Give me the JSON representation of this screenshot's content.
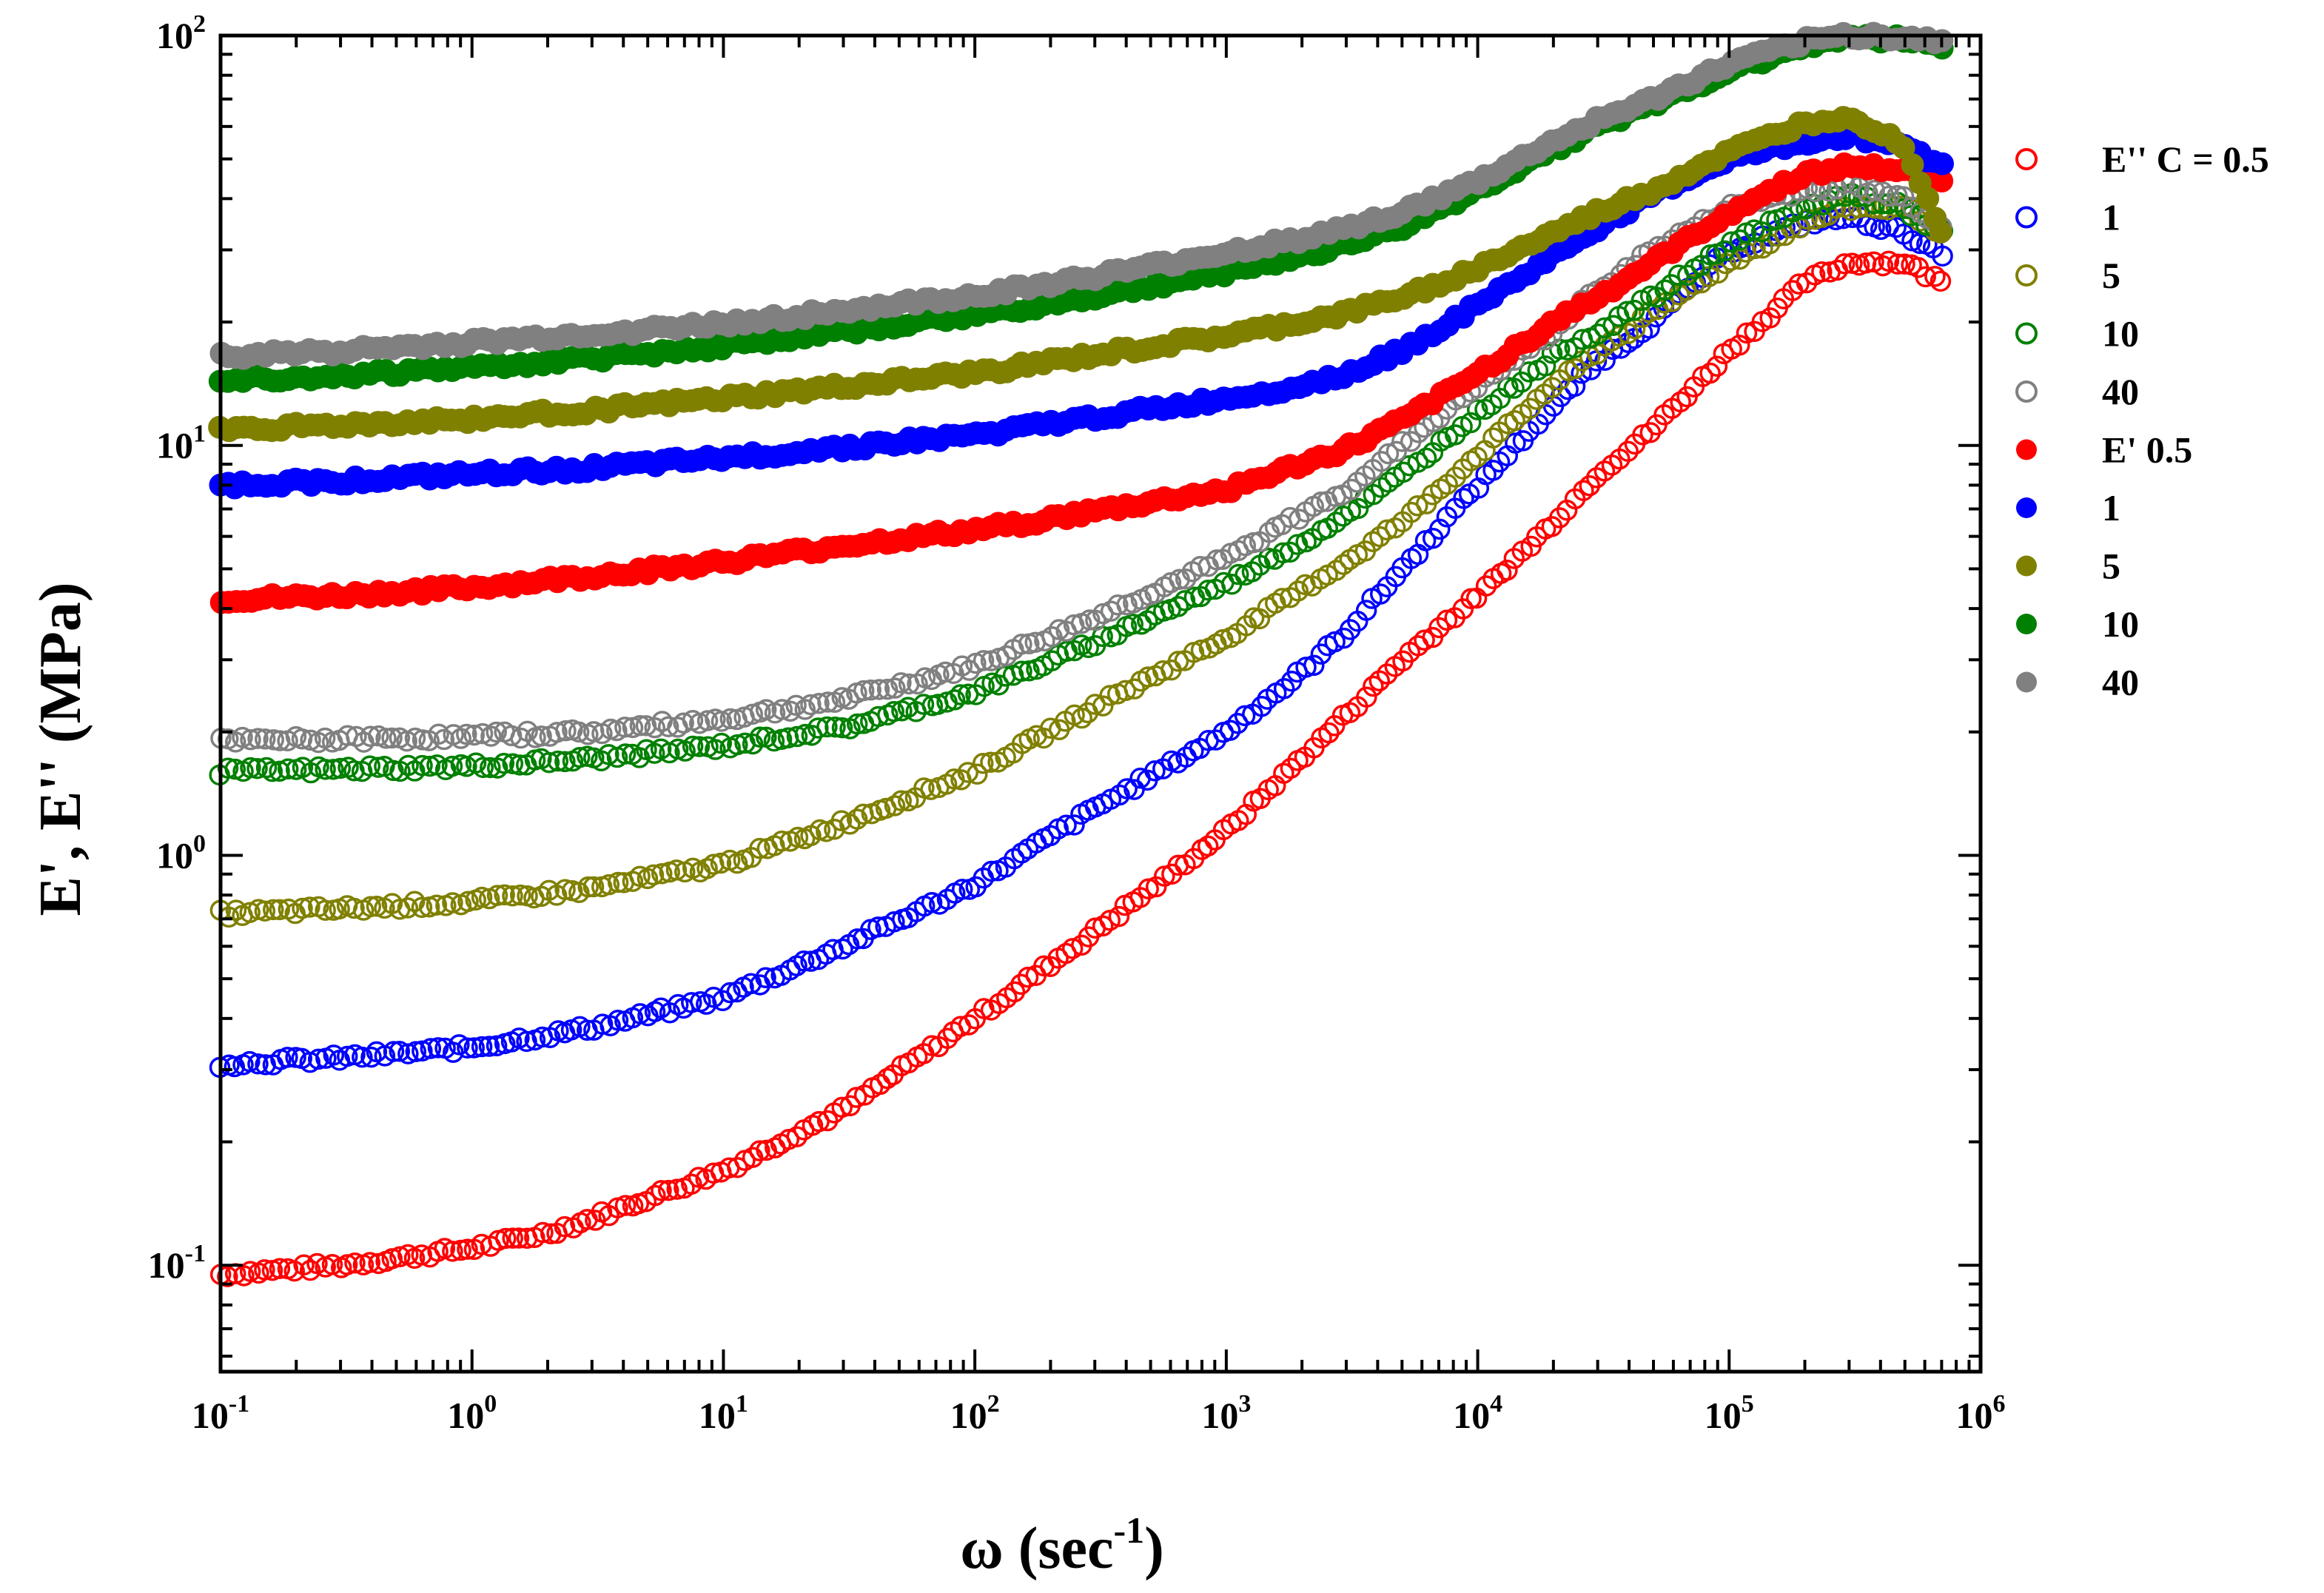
{
  "chart_data": {
    "type": "scatter",
    "title": "",
    "xlabel": "ω (sec",
    "xlabel_sup": "-1",
    "xlabel_close": ")",
    "ylabel": "E', E'' (MPa)",
    "xscale": "log",
    "yscale": "log",
    "xlim": [
      0.1,
      1000000
    ],
    "ylim": [
      0.055,
      100
    ],
    "x_ticks": [
      {
        "base": "10",
        "exp": "-1",
        "value": 0.1
      },
      {
        "base": "10",
        "exp": "0",
        "value": 1
      },
      {
        "base": "10",
        "exp": "1",
        "value": 10
      },
      {
        "base": "10",
        "exp": "2",
        "value": 100
      },
      {
        "base": "10",
        "exp": "3",
        "value": 1000
      },
      {
        "base": "10",
        "exp": "4",
        "value": 10000
      },
      {
        "base": "10",
        "exp": "5",
        "value": 100000
      },
      {
        "base": "10",
        "exp": "6",
        "value": 1000000
      }
    ],
    "y_ticks": [
      {
        "base": "10",
        "exp": "-1",
        "value": 0.1
      },
      {
        "base": "10",
        "exp": "0",
        "value": 1
      },
      {
        "base": "10",
        "exp": "1",
        "value": 10
      },
      {
        "base": "10",
        "exp": "2",
        "value": 100
      }
    ],
    "grid": false,
    "legend_position": "right",
    "series": [
      {
        "name": "E'' C = 0.5",
        "modulus": "E''",
        "concentration": 0.5,
        "marker": "open-circle",
        "color": "#ff0000",
        "x": [
          0.1,
          0.3,
          1,
          2,
          3,
          10,
          30,
          100,
          300,
          1000,
          3000,
          5000,
          10000,
          20000,
          30000,
          50000,
          100000,
          200000,
          300000,
          500000,
          700000
        ],
        "y": [
          0.095,
          0.1,
          0.11,
          0.12,
          0.13,
          0.17,
          0.24,
          0.4,
          0.65,
          1.15,
          2.2,
          3.0,
          4.3,
          6.5,
          8.5,
          11.0,
          17.0,
          25.0,
          28.0,
          28.0,
          25.0
        ]
      },
      {
        "name": "1",
        "modulus": "E''",
        "concentration": 1,
        "marker": "open-circle",
        "color": "#0000ff",
        "x": [
          0.1,
          0.3,
          1,
          3,
          10,
          30,
          100,
          300,
          1000,
          2000,
          3000,
          5000,
          10000,
          20000,
          30000,
          50000,
          100000,
          200000,
          300000,
          500000,
          700000
        ],
        "y": [
          0.31,
          0.32,
          0.34,
          0.38,
          0.45,
          0.6,
          0.85,
          1.3,
          2.0,
          2.8,
          3.5,
          5.0,
          8.0,
          12.5,
          16.0,
          20.0,
          30.0,
          35.0,
          36.0,
          33.0,
          29.0
        ]
      },
      {
        "name": "5",
        "modulus": "E''",
        "concentration": 5,
        "marker": "open-circle",
        "color": "#808000",
        "x": [
          0.1,
          0.3,
          1,
          3,
          10,
          30,
          100,
          300,
          1000,
          3000,
          5000,
          10000,
          20000,
          30000,
          50000,
          100000,
          200000,
          300000,
          500000,
          700000
        ],
        "y": [
          0.72,
          0.74,
          0.77,
          0.83,
          0.95,
          1.2,
          1.6,
          2.3,
          3.4,
          5.2,
          6.5,
          9.5,
          14.0,
          17.0,
          21.0,
          28.0,
          35.0,
          38.0,
          38.0,
          33.0
        ]
      },
      {
        "name": "10",
        "modulus": "E''",
        "concentration": 10,
        "marker": "open-circle",
        "color": "#008000",
        "x": [
          0.1,
          0.3,
          1,
          3,
          10,
          30,
          100,
          300,
          1000,
          2000,
          3000,
          5000,
          10000,
          20000,
          30000,
          50000,
          100000,
          200000,
          300000,
          500000,
          700000
        ],
        "y": [
          1.6,
          1.62,
          1.65,
          1.72,
          1.85,
          2.05,
          2.5,
          3.3,
          4.6,
          5.8,
          6.8,
          8.5,
          12.0,
          16.5,
          19.0,
          23.0,
          31.0,
          38.0,
          41.0,
          38.0,
          33.0
        ]
      },
      {
        "name": "40",
        "modulus": "E''",
        "concentration": 40,
        "marker": "open-circle",
        "color": "#808080",
        "x": [
          0.1,
          0.3,
          1,
          3,
          10,
          30,
          100,
          300,
          1000,
          2000,
          3000,
          5000,
          10000,
          20000,
          30000,
          50000,
          100000,
          200000,
          300000,
          500000,
          700000
        ],
        "y": [
          1.9,
          1.92,
          1.95,
          2.0,
          2.15,
          2.4,
          2.9,
          3.8,
          5.3,
          6.8,
          7.8,
          10.0,
          14.0,
          19.0,
          24.0,
          30.0,
          38.0,
          42.0,
          43.0,
          40.0,
          34.0
        ]
      },
      {
        "name": "E' 0.5",
        "modulus": "E'",
        "concentration": 0.5,
        "marker": "filled-circle",
        "color": "#ff0000",
        "x": [
          0.1,
          0.3,
          1,
          3,
          10,
          30,
          100,
          300,
          1000,
          2000,
          3000,
          5000,
          10000,
          20000,
          30000,
          50000,
          100000,
          200000,
          300000,
          500000,
          700000
        ],
        "y": [
          4.2,
          4.3,
          4.5,
          4.8,
          5.2,
          5.7,
          6.2,
          6.9,
          7.8,
          9.0,
          9.8,
          11.5,
          15.0,
          20.0,
          23.0,
          28.0,
          37.0,
          46.0,
          48.0,
          47.0,
          45.0
        ]
      },
      {
        "name": "1",
        "modulus": "E'",
        "concentration": 1,
        "marker": "filled-circle",
        "color": "#0000ff",
        "x": [
          0.1,
          0.3,
          1,
          3,
          10,
          30,
          100,
          300,
          1000,
          2000,
          3000,
          5000,
          10000,
          20000,
          30000,
          50000,
          100000,
          200000,
          300000,
          500000,
          700000
        ],
        "y": [
          8.0,
          8.2,
          8.5,
          8.8,
          9.3,
          9.9,
          10.6,
          11.7,
          13.0,
          14.0,
          15.0,
          17.0,
          22.0,
          29.0,
          34.0,
          41.0,
          50.0,
          55.0,
          57.0,
          54.0,
          48.0
        ]
      },
      {
        "name": "5",
        "modulus": "E'",
        "concentration": 5,
        "marker": "filled-circle",
        "color": "#808000",
        "x": [
          0.1,
          0.3,
          1,
          3,
          10,
          30,
          100,
          300,
          1000,
          2000,
          3000,
          5000,
          10000,
          20000,
          30000,
          50000,
          100000,
          200000,
          300000,
          500000,
          700000
        ],
        "y": [
          11.0,
          11.2,
          11.6,
          12.2,
          13.0,
          13.9,
          15.0,
          16.6,
          18.5,
          20.0,
          21.0,
          23.0,
          27.0,
          33.0,
          37.0,
          42.0,
          52.0,
          61.0,
          64.0,
          54.0,
          33.0
        ]
      },
      {
        "name": "10",
        "modulus": "E'",
        "concentration": 10,
        "marker": "filled-circle",
        "color": "#008000",
        "x": [
          0.1,
          0.3,
          1,
          3,
          10,
          30,
          100,
          300,
          1000,
          2000,
          3000,
          5000,
          10000,
          20000,
          30000,
          50000,
          100000,
          200000,
          300000,
          500000,
          700000
        ],
        "y": [
          14.5,
          14.8,
          15.5,
          16.3,
          17.5,
          19.0,
          20.8,
          23.0,
          26.5,
          29.0,
          31.0,
          34.0,
          42.0,
          53.0,
          60.0,
          68.0,
          82.0,
          95.0,
          99.0,
          98.0,
          95.0
        ]
      },
      {
        "name": "40",
        "modulus": "E'",
        "concentration": 40,
        "marker": "filled-circle",
        "color": "#808080",
        "x": [
          0.1,
          0.3,
          1,
          3,
          10,
          30,
          100,
          300,
          1000,
          2000,
          3000,
          5000,
          10000,
          20000,
          30000,
          50000,
          100000,
          200000,
          300000,
          500000,
          700000
        ],
        "y": [
          16.5,
          17.0,
          17.8,
          18.7,
          19.8,
          21.3,
          23.2,
          25.8,
          29.5,
          32.0,
          34.0,
          37.0,
          44.0,
          55.0,
          62.0,
          70.0,
          85.0,
          97.0,
          100.0,
          99.0,
          96.0
        ]
      }
    ]
  }
}
